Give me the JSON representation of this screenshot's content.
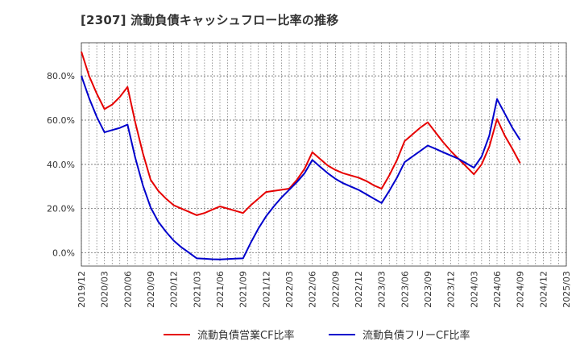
{
  "chart_data": {
    "type": "line",
    "title": "[2307]  流動負債キャッシュフロー比率の推移",
    "xlabel": "",
    "ylabel": "",
    "x_tick_labels": [
      "2019/12",
      "2020/03",
      "2020/06",
      "2020/09",
      "2020/12",
      "2021/03",
      "2021/06",
      "2021/09",
      "2021/12",
      "2022/03",
      "2022/06",
      "2022/09",
      "2022/12",
      "2023/03",
      "2023/06",
      "2023/09",
      "2023/12",
      "2024/03",
      "2024/06",
      "2024/09",
      "2024/12",
      "2025/03"
    ],
    "y_tick_labels": [
      "0.0%",
      "20.0%",
      "40.0%",
      "60.0%",
      "80.0%"
    ],
    "ylim": [
      -6,
      95
    ],
    "grid": true,
    "legend_position": "bottom",
    "series": [
      {
        "name": "流動負債営業CF比率",
        "color": "#e60000",
        "points": [
          [
            "2019/12",
            91
          ],
          [
            "2020/01",
            80
          ],
          [
            "2020/02",
            72
          ],
          [
            "2020/03",
            65
          ],
          [
            "2020/04",
            67
          ],
          [
            "2020/05",
            70.5
          ],
          [
            "2020/06",
            75
          ],
          [
            "2020/07",
            59
          ],
          [
            "2020/08",
            45
          ],
          [
            "2020/09",
            33
          ],
          [
            "2020/10",
            28
          ],
          [
            "2020/11",
            24.5
          ],
          [
            "2020/12",
            21.5
          ],
          [
            "2021/01",
            20
          ],
          [
            "2021/02",
            18.5
          ],
          [
            "2021/03",
            17
          ],
          [
            "2021/04",
            18
          ],
          [
            "2021/05",
            19.5
          ],
          [
            "2021/06",
            21
          ],
          [
            "2021/07",
            20
          ],
          [
            "2021/08",
            19
          ],
          [
            "2021/09",
            18
          ],
          [
            "2021/10",
            21.5
          ],
          [
            "2021/11",
            24.5
          ],
          [
            "2021/12",
            27.5
          ],
          [
            "2022/01",
            28
          ],
          [
            "2022/02",
            28.5
          ],
          [
            "2022/03",
            29
          ],
          [
            "2022/04",
            33
          ],
          [
            "2022/05",
            38
          ],
          [
            "2022/06",
            45.5
          ],
          [
            "2022/07",
            42.5
          ],
          [
            "2022/08",
            39.5
          ],
          [
            "2022/09",
            37.5
          ],
          [
            "2022/10",
            36
          ],
          [
            "2022/11",
            35
          ],
          [
            "2022/12",
            34
          ],
          [
            "2023/01",
            32.5
          ],
          [
            "2023/02",
            30.5
          ],
          [
            "2023/03",
            29
          ],
          [
            "2023/04",
            35
          ],
          [
            "2023/05",
            42
          ],
          [
            "2023/06",
            50.5
          ],
          [
            "2023/07",
            53.5
          ],
          [
            "2023/08",
            56.5
          ],
          [
            "2023/09",
            59
          ],
          [
            "2023/10",
            54.5
          ],
          [
            "2023/11",
            50
          ],
          [
            "2023/12",
            46
          ],
          [
            "2024/01",
            42.5
          ],
          [
            "2024/02",
            39
          ],
          [
            "2024/03",
            35.5
          ],
          [
            "2024/04",
            40
          ],
          [
            "2024/05",
            48
          ],
          [
            "2024/06",
            60.5
          ],
          [
            "2024/07",
            53
          ],
          [
            "2024/08",
            47
          ],
          [
            "2024/09",
            40.5
          ]
        ]
      },
      {
        "name": "流動負債フリーCF比率",
        "color": "#0000cc",
        "points": [
          [
            "2019/12",
            80
          ],
          [
            "2020/01",
            70
          ],
          [
            "2020/02",
            61.5
          ],
          [
            "2020/03",
            54.5
          ],
          [
            "2020/04",
            55.5
          ],
          [
            "2020/05",
            56.5
          ],
          [
            "2020/06",
            58
          ],
          [
            "2020/07",
            43
          ],
          [
            "2020/08",
            30.5
          ],
          [
            "2020/09",
            20.5
          ],
          [
            "2020/10",
            14
          ],
          [
            "2020/11",
            9.5
          ],
          [
            "2020/12",
            5.5
          ],
          [
            "2021/01",
            2.5
          ],
          [
            "2021/02",
            0
          ],
          [
            "2021/03",
            -2.5
          ],
          [
            "2021/04",
            -2.7
          ],
          [
            "2021/05",
            -2.9
          ],
          [
            "2021/06",
            -3
          ],
          [
            "2021/07",
            -2.8
          ],
          [
            "2021/08",
            -2.6
          ],
          [
            "2021/09",
            -2.5
          ],
          [
            "2021/10",
            4.5
          ],
          [
            "2021/11",
            11
          ],
          [
            "2021/12",
            16.5
          ],
          [
            "2022/01",
            21
          ],
          [
            "2022/02",
            25
          ],
          [
            "2022/03",
            28.5
          ],
          [
            "2022/04",
            32
          ],
          [
            "2022/05",
            36
          ],
          [
            "2022/06",
            42
          ],
          [
            "2022/07",
            39
          ],
          [
            "2022/08",
            36
          ],
          [
            "2022/09",
            33.5
          ],
          [
            "2022/10",
            31.5
          ],
          [
            "2022/11",
            30
          ],
          [
            "2022/12",
            28.5
          ],
          [
            "2023/01",
            26.5
          ],
          [
            "2023/02",
            24.5
          ],
          [
            "2023/03",
            22.5
          ],
          [
            "2023/04",
            28
          ],
          [
            "2023/05",
            34
          ],
          [
            "2023/06",
            41
          ],
          [
            "2023/07",
            43.5
          ],
          [
            "2023/08",
            46
          ],
          [
            "2023/09",
            48.5
          ],
          [
            "2023/10",
            47
          ],
          [
            "2023/11",
            45.5
          ],
          [
            "2023/12",
            44
          ],
          [
            "2024/01",
            42.5
          ],
          [
            "2024/02",
            40.5
          ],
          [
            "2024/03",
            38.5
          ],
          [
            "2024/04",
            43.5
          ],
          [
            "2024/05",
            53
          ],
          [
            "2024/06",
            69.5
          ],
          [
            "2024/07",
            63
          ],
          [
            "2024/08",
            56.5
          ],
          [
            "2024/09",
            51
          ]
        ]
      }
    ]
  }
}
